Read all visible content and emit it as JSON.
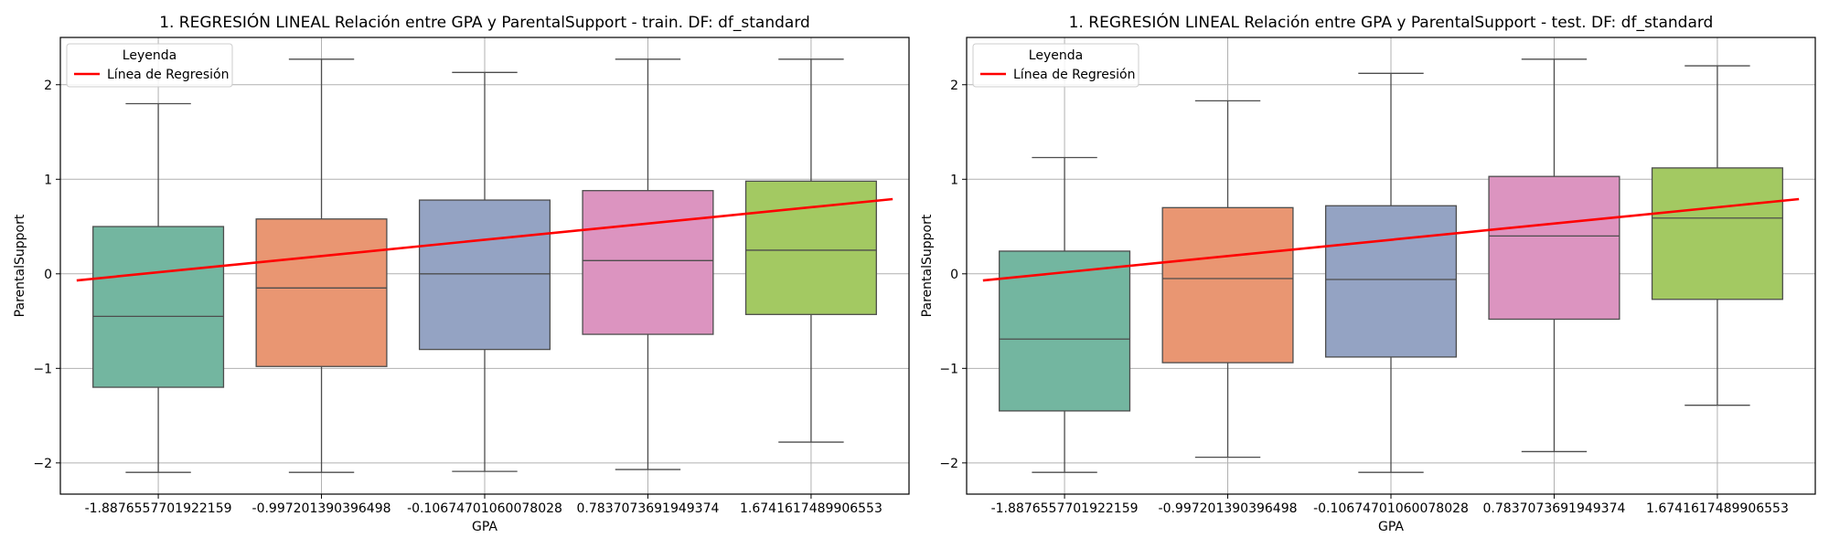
{
  "chart_data": [
    {
      "type": "box",
      "title": "1. REGRESIÓN LINEAL Relación entre GPA y ParentalSupport - train. DF: df_standard",
      "xlabel": "GPA",
      "ylabel": "ParentalSupport",
      "ylim": [
        -2.33,
        2.5
      ],
      "yticks": [
        -2,
        -1,
        0,
        1,
        2
      ],
      "ytick_labels": [
        "−2",
        "−1",
        "0",
        "1",
        "2"
      ],
      "grid": true,
      "legend": {
        "title": "Leyenda",
        "placement": "top-left",
        "entries": [
          "Línea de Regresión"
        ]
      },
      "categories": [
        "-1.8876557701922159",
        "-0.997201390396498",
        "-0.10674701060078028",
        "0.7837073691949374",
        "1.6741617489906553"
      ],
      "colors": [
        "#73b6a0",
        "#e99672",
        "#94a3c3",
        "#dc94c0",
        "#a3c962"
      ],
      "line_color": "#ff0000",
      "boxes": [
        {
          "whislo": -2.1,
          "q1": -1.2,
          "med": -0.45,
          "q3": 0.5,
          "whishi": 1.8
        },
        {
          "whislo": -2.1,
          "q1": -0.98,
          "med": -0.15,
          "q3": 0.58,
          "whishi": 2.27
        },
        {
          "whislo": -2.09,
          "q1": -0.8,
          "med": 0.0,
          "q3": 0.78,
          "whishi": 2.13
        },
        {
          "whislo": -2.07,
          "q1": -0.64,
          "med": 0.14,
          "q3": 0.88,
          "whishi": 2.27
        },
        {
          "whislo": -1.78,
          "q1": -0.43,
          "med": 0.25,
          "q3": 0.98,
          "whishi": 2.27
        }
      ],
      "regression_line": {
        "x": [
          -0.5,
          4.5
        ],
        "y": [
          -0.07,
          0.79
        ]
      }
    },
    {
      "type": "box",
      "title": "1. REGRESIÓN LINEAL Relación entre GPA y ParentalSupport - test. DF: df_standard",
      "xlabel": "GPA",
      "ylabel": "ParentalSupport",
      "ylim": [
        -2.33,
        2.5
      ],
      "yticks": [
        -2,
        -1,
        0,
        1,
        2
      ],
      "ytick_labels": [
        "−2",
        "−1",
        "0",
        "1",
        "2"
      ],
      "grid": true,
      "legend": {
        "title": "Leyenda",
        "placement": "top-left",
        "entries": [
          "Línea de Regresión"
        ]
      },
      "categories": [
        "-1.8876557701922159",
        "-0.997201390396498",
        "-0.10674701060078028",
        "0.7837073691949374",
        "1.6741617489906553"
      ],
      "colors": [
        "#73b6a0",
        "#e99672",
        "#94a3c3",
        "#dc94c0",
        "#a3c962"
      ],
      "line_color": "#ff0000",
      "boxes": [
        {
          "whislo": -2.1,
          "q1": -1.45,
          "med": -0.69,
          "q3": 0.24,
          "whishi": 1.23
        },
        {
          "whislo": -1.94,
          "q1": -0.94,
          "med": -0.05,
          "q3": 0.7,
          "whishi": 1.83
        },
        {
          "whislo": -2.1,
          "q1": -0.88,
          "med": -0.06,
          "q3": 0.72,
          "whishi": 2.12
        },
        {
          "whislo": -1.88,
          "q1": -0.48,
          "med": 0.4,
          "q3": 1.03,
          "whishi": 2.27
        },
        {
          "whislo": -1.39,
          "q1": -0.27,
          "med": 0.59,
          "q3": 1.12,
          "whishi": 2.2
        }
      ],
      "regression_line": {
        "x": [
          -0.5,
          4.5
        ],
        "y": [
          -0.07,
          0.79
        ]
      }
    }
  ]
}
